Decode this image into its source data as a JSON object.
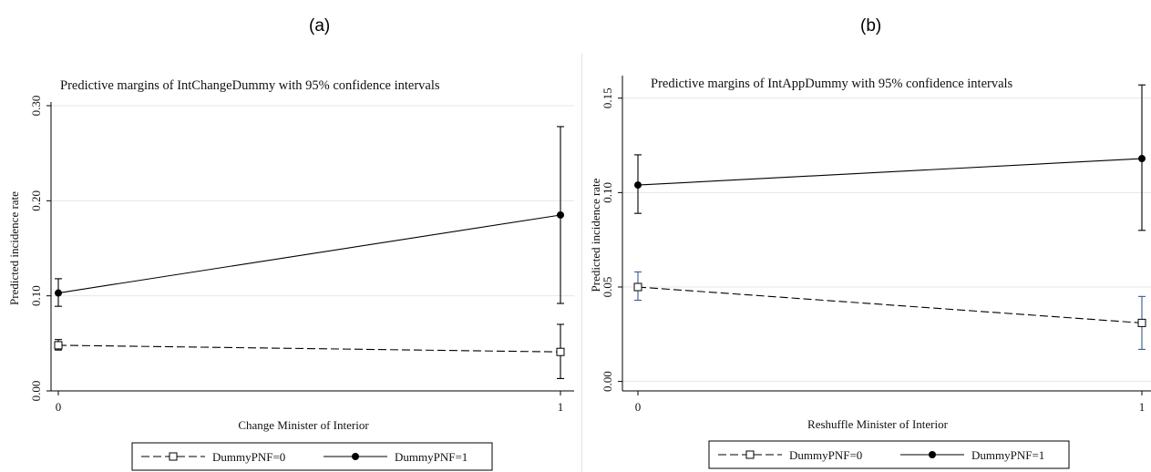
{
  "panels": {
    "a": {
      "label": "(a)"
    },
    "b": {
      "label": "(b)"
    }
  },
  "chart_data": [
    {
      "type": "line",
      "title": "Predictive margins of IntChangeDummy with 95% confidence intervals",
      "xlabel": "Change Minister of Interior",
      "ylabel": "Predicted incidence rate",
      "x": [
        0,
        1
      ],
      "xticks": [
        "0",
        "1"
      ],
      "ylim": [
        0,
        0.3
      ],
      "yticks": [
        0.0,
        0.1,
        0.2,
        0.3
      ],
      "ytick_labels": [
        "0.00",
        "0.10",
        "0.20",
        "0.30"
      ],
      "grid": true,
      "legend_position": "bottom",
      "series": [
        {
          "name": "DummyPNF=0",
          "values": [
            0.048,
            0.041
          ],
          "ci_low": [
            0.043,
            0.013
          ],
          "ci_high": [
            0.054,
            0.07
          ],
          "line_style": "dashed",
          "marker": "hollow-square",
          "color": "#000000"
        },
        {
          "name": "DummyPNF=1",
          "values": [
            0.103,
            0.185
          ],
          "ci_low": [
            0.089,
            0.092
          ],
          "ci_high": [
            0.118,
            0.278
          ],
          "line_style": "solid",
          "marker": "filled-circle",
          "color": "#000000"
        }
      ]
    },
    {
      "type": "line",
      "title": "Predictive margins of IntAppDummy with 95% confidence intervals",
      "xlabel": "Reshuffle Minister of Interior",
      "ylabel": "Predicted incidence rate",
      "x": [
        0,
        1
      ],
      "xticks": [
        "0",
        "1"
      ],
      "ylim": [
        -0.005,
        0.16
      ],
      "yticks": [
        0.0,
        0.05,
        0.1,
        0.15
      ],
      "ytick_labels": [
        "0.00",
        "0.05",
        "0.10",
        "0.15"
      ],
      "grid": true,
      "legend_position": "bottom",
      "series": [
        {
          "name": "DummyPNF=0",
          "values": [
            0.05,
            0.031
          ],
          "ci_low": [
            0.043,
            0.017
          ],
          "ci_high": [
            0.058,
            0.045
          ],
          "line_style": "dashed",
          "marker": "hollow-square",
          "color": "#000000",
          "ci_color": "#3b5b8c"
        },
        {
          "name": "DummyPNF=1",
          "values": [
            0.104,
            0.118
          ],
          "ci_low": [
            0.089,
            0.08
          ],
          "ci_high": [
            0.12,
            0.157
          ],
          "line_style": "solid",
          "marker": "filled-circle",
          "color": "#000000"
        }
      ]
    }
  ]
}
